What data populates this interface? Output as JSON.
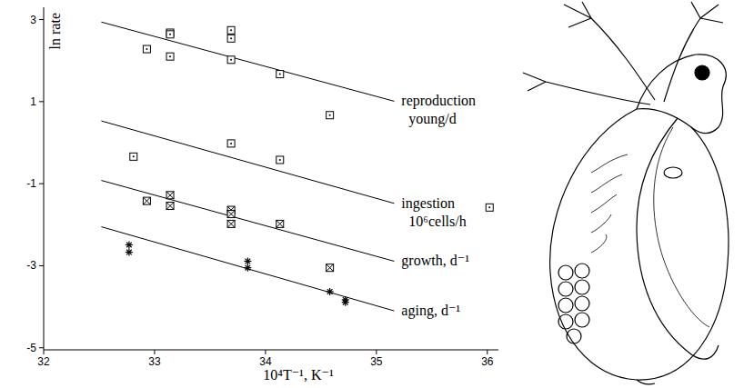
{
  "chart_data": {
    "type": "scatter",
    "x_label": "10⁴T⁻¹, K⁻¹",
    "y_label": "ln rate",
    "xlim": [
      32,
      36.1
    ],
    "ylim": [
      -5.05,
      3.3
    ],
    "xticks": [
      32,
      33,
      34,
      35,
      36
    ],
    "yticks": [
      -5,
      -3,
      -1,
      1,
      3
    ],
    "grid": false,
    "series": [
      {
        "name": "reproduction",
        "unit": "young/d",
        "color": "#000000",
        "marker": "square",
        "x": [
          32.93,
          33.14,
          33.14,
          33.14,
          33.69,
          33.69,
          33.69,
          34.13,
          34.58
        ],
        "values": [
          2.28,
          2.68,
          2.64,
          2.1,
          2.74,
          2.54,
          2.02,
          1.67,
          0.67
        ],
        "fit": {
          "x": [
            32.52,
            35.16
          ],
          "values": [
            2.94,
            1.01
          ]
        }
      },
      {
        "name": "ingestion",
        "unit": "10⁶cells/h",
        "color": "#000000",
        "marker": "square",
        "x": [
          32.81,
          33.69,
          34.13,
          36.02
        ],
        "values": [
          -0.34,
          -0.02,
          -0.42,
          -1.58
        ],
        "fit": {
          "x": [
            32.52,
            35.16
          ],
          "values": [
            0.53,
            -1.48
          ]
        }
      },
      {
        "name": "growth, d⁻¹",
        "color": "#000000",
        "marker": "square-x",
        "x": [
          32.93,
          33.14,
          33.14,
          33.69,
          33.69,
          33.69,
          34.13,
          34.58
        ],
        "values": [
          -1.42,
          -1.28,
          -1.54,
          -1.64,
          -1.74,
          -1.98,
          -1.98,
          -3.05
        ],
        "fit": {
          "x": [
            32.52,
            35.16
          ],
          "values": [
            -0.92,
            -2.89
          ]
        }
      },
      {
        "name": "aging, d⁻¹",
        "color": "#000000",
        "marker": "asterisk",
        "x": [
          32.77,
          32.77,
          33.84,
          33.84,
          34.58,
          34.72,
          34.72
        ],
        "values": [
          -2.49,
          -2.67,
          -2.89,
          -3.05,
          -3.63,
          -3.83,
          -3.89
        ],
        "fit": {
          "x": [
            32.52,
            35.16
          ],
          "values": [
            -2.05,
            -4.1
          ]
        }
      }
    ]
  }
}
